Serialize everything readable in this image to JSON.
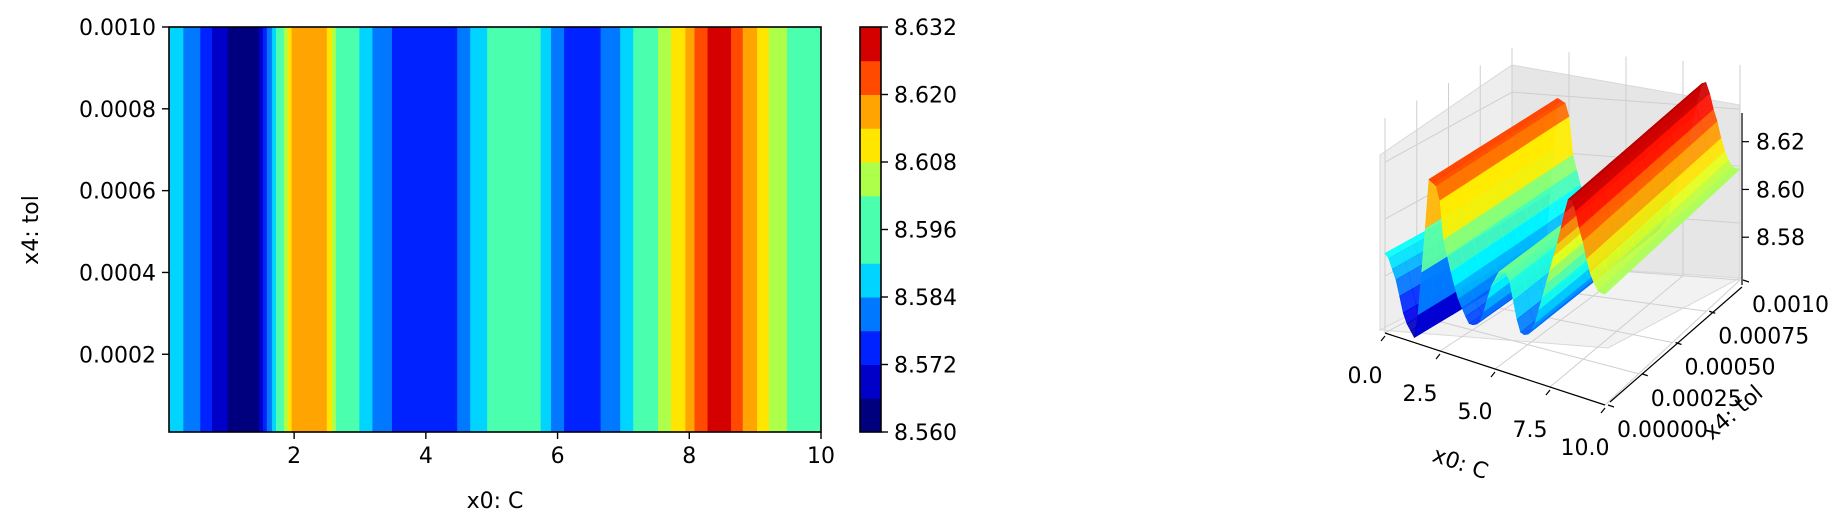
{
  "chart_data": [
    {
      "type": "heatmap",
      "subtype": "filled-contour",
      "xlabel": "x0: C",
      "ylabel": "x4: tol",
      "xlim": [
        0.1,
        10
      ],
      "ylim": [
        1e-05,
        0.001
      ],
      "x_ticks": [
        "2",
        "4",
        "6",
        "8",
        "10"
      ],
      "y_ticks": [
        "0.0002",
        "0.0004",
        "0.0006",
        "0.0008",
        "0.0010"
      ],
      "colorbar_ticks": [
        "8.560",
        "8.572",
        "8.584",
        "8.596",
        "8.608",
        "8.620",
        "8.632"
      ],
      "levels": [
        8.56,
        8.566,
        8.572,
        8.578,
        8.584,
        8.59,
        8.596,
        8.602,
        8.608,
        8.614,
        8.62,
        8.626,
        8.632
      ],
      "level_colors": [
        "#00007f",
        "#0000c9",
        "#0022ff",
        "#0078ff",
        "#00d4ff",
        "#4affad",
        "#4affad",
        "#adff4a",
        "#ffe600",
        "#ffa400",
        "#ff4a00",
        "#d40000",
        "#7f0000"
      ],
      "profile_note": "value varies along x0 only; constant along x4",
      "x": [
        0.1,
        0.5,
        0.9,
        1.4,
        1.8,
        2.0,
        2.45,
        2.65,
        3.1,
        3.35,
        3.8,
        4.1,
        4.4,
        4.8,
        5.2,
        5.6,
        6.0,
        6.2,
        6.5,
        6.8,
        7.1,
        7.4,
        7.65,
        7.9,
        8.1,
        8.4,
        8.6,
        8.8,
        9.0,
        9.2,
        9.4,
        9.7,
        10.0
      ],
      "z": [
        8.588,
        8.58,
        8.567,
        8.561,
        8.598,
        8.619,
        8.617,
        8.6,
        8.586,
        8.58,
        8.573,
        8.573,
        8.576,
        8.588,
        8.595,
        8.595,
        8.58,
        8.575,
        8.576,
        8.58,
        8.589,
        8.598,
        8.606,
        8.613,
        8.621,
        8.63,
        8.627,
        8.62,
        8.615,
        8.608,
        8.603,
        8.599,
        8.599
      ]
    },
    {
      "type": "surface3d",
      "xlabel": "x0: C",
      "ylabel": "x4: tol",
      "x_ticks": [
        "0.0",
        "2.5",
        "5.0",
        "7.5",
        "10.0"
      ],
      "y_ticks": [
        "0.00000",
        "0.00025",
        "0.00050",
        "0.00075",
        "0.00100"
      ],
      "z_ticks": [
        "8.58",
        "8.60",
        "8.62"
      ],
      "xlim": [
        0,
        10
      ],
      "ylim": [
        0,
        0.001
      ],
      "zlim": [
        8.56,
        8.632
      ],
      "colormap": "jet"
    }
  ]
}
